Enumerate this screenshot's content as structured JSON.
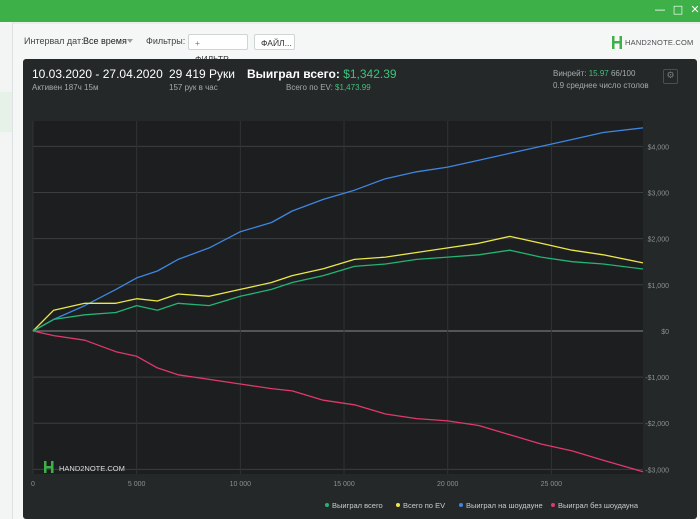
{
  "window": {
    "controls": [
      "—",
      "□",
      "✕"
    ]
  },
  "toolbar": {
    "date_interval_label": "Интервал дат:",
    "date_interval_value": "Все время",
    "filters_label": "Фильтры:",
    "filter_button": "ФИЛЬТР...",
    "file_button": "ФАЙЛ...",
    "logo_text": "HAND2NOTE.COM"
  },
  "summary": {
    "date_range": "10.03.2020 - 27.04.2020",
    "active": "Активен 187ч 15м",
    "hands": "29 419 Руки",
    "hands_per_hour": "157 рук в час",
    "won_total_label": "Выиграл всего:",
    "won_total_value": "$1,342.39",
    "ev_label": "Всего по EV:",
    "ev_value": "$1,473.99",
    "winrate_label": "Винрейт:",
    "winrate_value": "15.97",
    "winrate_suffix": "66/100",
    "avg_tables": "0.9 среднее число столов"
  },
  "chart_watermark": "HAND2NOTE.COM",
  "colors": {
    "won": "#22b573",
    "ev": "#ebe84a",
    "showdown": "#3f86e0",
    "non_showdown": "#e0396b",
    "accent": "#3db048"
  },
  "chart_data": {
    "type": "line",
    "x_ticks": [
      0,
      5000,
      10000,
      15000,
      20000,
      25000
    ],
    "x_tick_labels": [
      "0",
      "5 000",
      "10 000",
      "15 000",
      "20 000",
      "25 000"
    ],
    "xlim": [
      0,
      29419
    ],
    "y_ticks": [
      -3000,
      -2000,
      -1000,
      0,
      1000,
      2000,
      3000,
      4000
    ],
    "y_tick_labels": [
      "-$3,000",
      "-$2,000",
      "-$1,000",
      "$0",
      "$1,000",
      "$2,000",
      "$3,000",
      "$4,000"
    ],
    "ylim": [
      -3100,
      4550
    ],
    "legend_position": "bottom-right",
    "series": [
      {
        "name": "Выиграл всего",
        "color": "#22b573",
        "x": [
          0,
          1000,
          2500,
          4000,
          5000,
          6000,
          7000,
          8500,
          10000,
          11500,
          12500,
          14000,
          15500,
          17000,
          18500,
          20000,
          21500,
          23000,
          24500,
          26000,
          27500,
          29419
        ],
        "y": [
          0,
          250,
          350,
          400,
          550,
          450,
          600,
          550,
          750,
          900,
          1050,
          1200,
          1400,
          1450,
          1550,
          1600,
          1650,
          1750,
          1600,
          1500,
          1450,
          1342
        ]
      },
      {
        "name": "Всего по EV",
        "color": "#ebe84a",
        "x": [
          0,
          1000,
          2500,
          4000,
          5000,
          6000,
          7000,
          8500,
          10000,
          11500,
          12500,
          14000,
          15500,
          17000,
          18500,
          20000,
          21500,
          23000,
          24500,
          26000,
          27500,
          29419
        ],
        "y": [
          0,
          450,
          600,
          600,
          700,
          650,
          800,
          750,
          900,
          1050,
          1200,
          1350,
          1550,
          1600,
          1700,
          1800,
          1900,
          2050,
          1900,
          1750,
          1650,
          1474
        ]
      },
      {
        "name": "Выиграл на шоудауне",
        "color": "#3f86e0",
        "x": [
          0,
          1000,
          2500,
          4000,
          5000,
          6000,
          7000,
          8500,
          10000,
          11500,
          12500,
          14000,
          15500,
          17000,
          18500,
          20000,
          21500,
          23000,
          24500,
          26000,
          27500,
          29419
        ],
        "y": [
          0,
          250,
          550,
          900,
          1150,
          1300,
          1550,
          1800,
          2150,
          2350,
          2600,
          2850,
          3050,
          3300,
          3450,
          3550,
          3700,
          3850,
          4000,
          4150,
          4300,
          4400
        ]
      },
      {
        "name": "Выиграл без шоудауна",
        "color": "#e0396b",
        "x": [
          0,
          1000,
          2500,
          4000,
          5000,
          6000,
          7000,
          8500,
          10000,
          11500,
          12500,
          14000,
          15500,
          17000,
          18500,
          20000,
          21500,
          23000,
          24500,
          26000,
          27500,
          29419
        ],
        "y": [
          0,
          -100,
          -200,
          -450,
          -550,
          -800,
          -950,
          -1050,
          -1150,
          -1250,
          -1300,
          -1500,
          -1600,
          -1800,
          -1900,
          -1950,
          -2050,
          -2250,
          -2450,
          -2600,
          -2800,
          -3050
        ]
      }
    ]
  }
}
